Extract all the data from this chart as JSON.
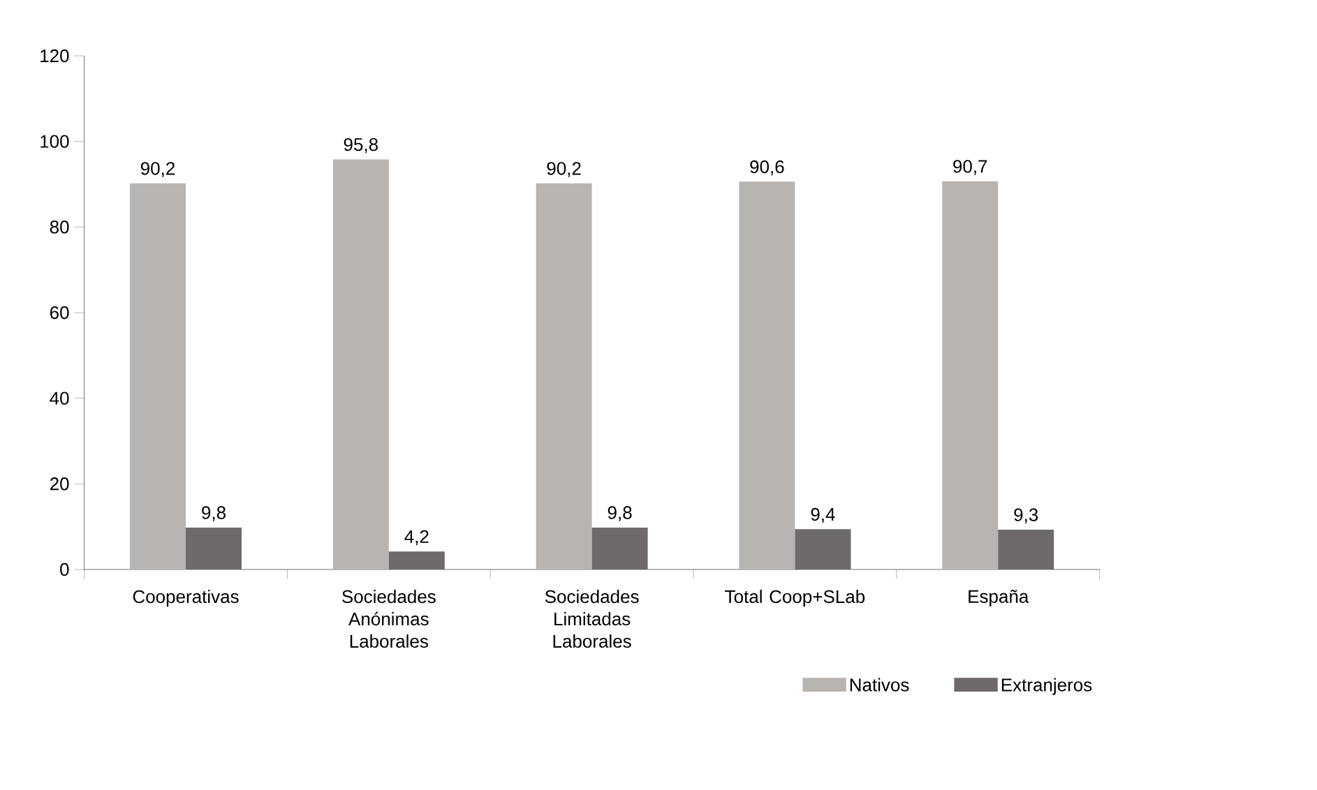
{
  "chart_data": {
    "type": "bar",
    "categories": [
      "Cooperativas",
      "Sociedades Anónimas Laborales",
      "Sociedades Limitadas Laborales",
      "Total Coop+SLab",
      "España"
    ],
    "series": [
      {
        "name": "Nativos",
        "color": "#b8b4b1",
        "values": [
          90.2,
          95.8,
          90.2,
          90.6,
          90.7
        ],
        "value_labels": [
          "90,2",
          "95,8",
          "90,2",
          "90,6",
          "90,7"
        ]
      },
      {
        "name": "Extranjeros",
        "color": "#6e6a6a",
        "values": [
          9.8,
          4.2,
          9.8,
          9.4,
          9.3
        ],
        "value_labels": [
          "9,8",
          "4,2",
          "9,8",
          "9,4",
          "9,3"
        ]
      }
    ],
    "ylim": [
      0,
      120
    ],
    "yticks": [
      0,
      20,
      40,
      60,
      80,
      100,
      120
    ],
    "grid": false,
    "legend": "bottom right"
  }
}
